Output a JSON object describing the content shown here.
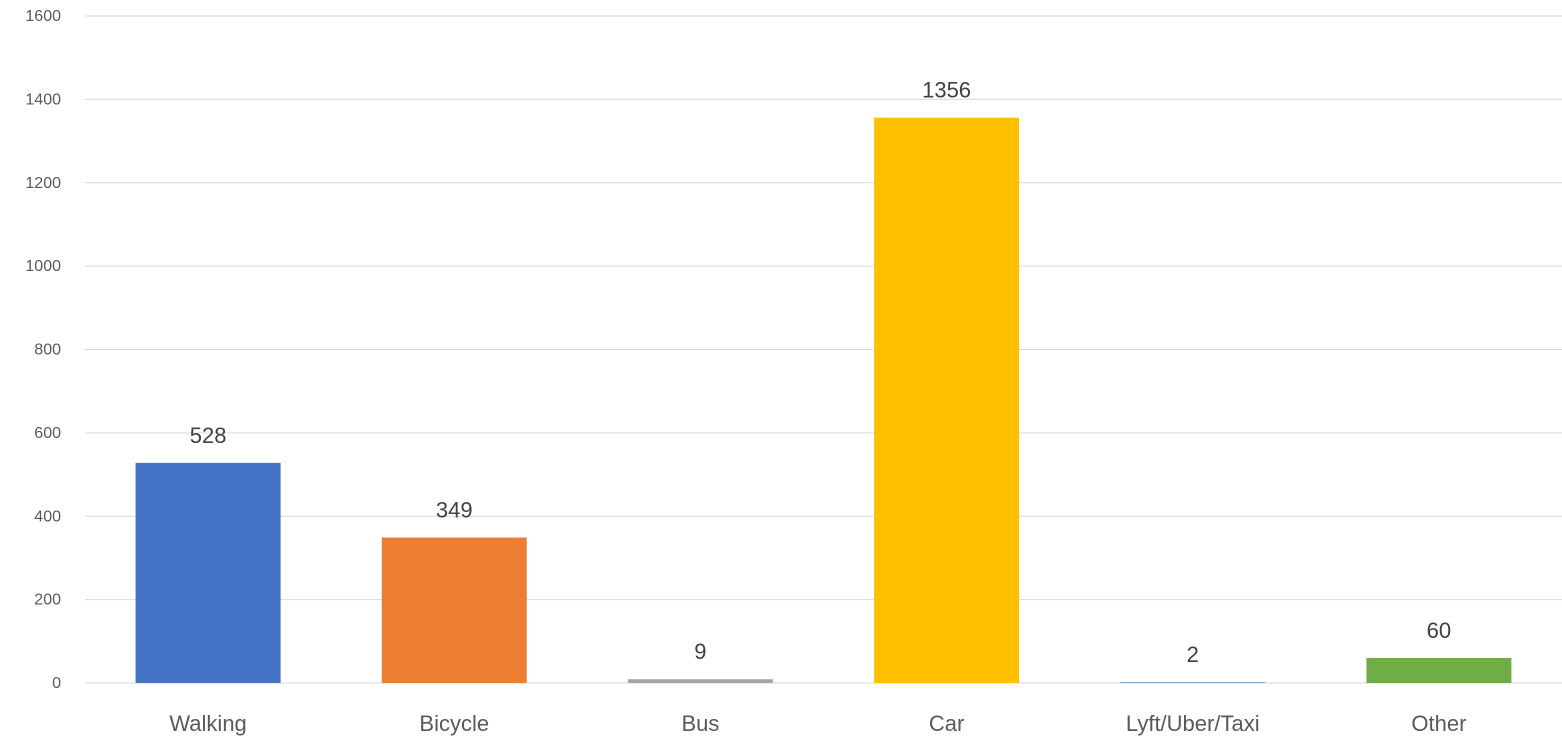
{
  "chart_data": {
    "type": "bar",
    "categories": [
      "Walking",
      "Bicycle",
      "Bus",
      "Car",
      "Lyft/Uber/Taxi",
      "Other"
    ],
    "values": [
      528,
      349,
      9,
      1356,
      2,
      60
    ],
    "colors": [
      "#4472c4",
      "#ed7d31",
      "#a5a5a5",
      "#ffc000",
      "#5b9bd5",
      "#70ad47"
    ],
    "ylim": [
      0,
      1600
    ],
    "yticks": [
      0,
      200,
      400,
      600,
      800,
      1000,
      1200,
      1400,
      1600
    ],
    "grid": true,
    "data_labels": true
  }
}
